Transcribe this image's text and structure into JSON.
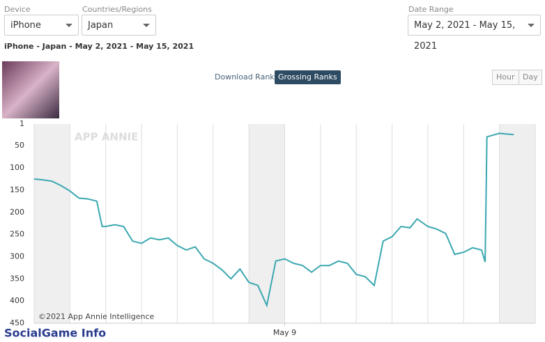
{
  "filters": {
    "device_label": "Device",
    "device": "iPhone",
    "region_label": "Countries/Regions",
    "region": "Japan",
    "date_label": "Date Range",
    "date": "May 2, 2021 - May 15, 2021"
  },
  "summary": "iPhone - Japan - May 2, 2021 - May 15, 2021",
  "tabs": [
    "Download Ranks",
    "Grossing Ranks"
  ],
  "granularity": [
    "Hour",
    "Day"
  ],
  "watermark": "APP ANNIE",
  "copyright": "©2021 App Annie Intelligence",
  "footer": "SocialGame Info",
  "chart_data": {
    "type": "line",
    "x": [
      0,
      0.25,
      0.5,
      0.75,
      1,
      1.25,
      1.5,
      1.75,
      1.9,
      2,
      2.25,
      2.5,
      2.75,
      3,
      3.25,
      3.5,
      3.75,
      4,
      4.25,
      4.5,
      4.75,
      5,
      5.25,
      5.5,
      5.75,
      6,
      6.25,
      6.5,
      6.75,
      7,
      7.25,
      7.5,
      7.75,
      8,
      8.25,
      8.5,
      8.75,
      9,
      9.25,
      9.5,
      9.75,
      10,
      10.25,
      10.5,
      10.7,
      11,
      11.25,
      11.5,
      11.75,
      12,
      12.25,
      12.5,
      12.6,
      12.65,
      13,
      13.25,
      13.4
    ],
    "series": [
      {
        "color": "#3aa7b0",
        "values": [
          125,
          127,
          130,
          140,
          152,
          168,
          170,
          175,
          232,
          232,
          228,
          232,
          265,
          270,
          258,
          262,
          258,
          275,
          285,
          278,
          305,
          315,
          330,
          350,
          328,
          358,
          365,
          410,
          310,
          305,
          315,
          320,
          335,
          320,
          320,
          310,
          315,
          340,
          345,
          365,
          265,
          255,
          232,
          235,
          215,
          232,
          238,
          248,
          295,
          290,
          280,
          285,
          312,
          30,
          22,
          24,
          25
        ]
      }
    ],
    "xlim": [
      0,
      14
    ],
    "xticks": [
      {
        "value": 7,
        "label": "May 9"
      }
    ],
    "ylim": [
      1,
      450
    ],
    "yticks": [
      1,
      50,
      100,
      150,
      200,
      250,
      300,
      350,
      400,
      450
    ],
    "y_inverted": true,
    "shaded": [
      [
        0,
        1
      ],
      [
        6,
        7
      ],
      [
        13,
        14
      ]
    ],
    "grid": "x-days"
  }
}
